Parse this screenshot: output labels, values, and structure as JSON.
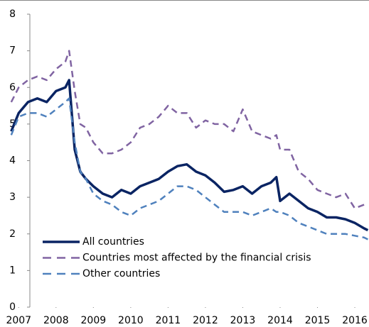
{
  "chart_data": {
    "type": "line",
    "x": [
      2007.3,
      2007.5,
      2007.75,
      2008.0,
      2008.25,
      2008.5,
      2008.75,
      2008.85,
      2009.0,
      2009.15,
      2009.3,
      2009.5,
      2009.75,
      2010.0,
      2010.25,
      2010.5,
      2010.75,
      2011.0,
      2011.25,
      2011.5,
      2011.75,
      2012.0,
      2012.25,
      2012.5,
      2012.75,
      2013.0,
      2013.25,
      2013.5,
      2013.75,
      2014.0,
      2014.25,
      2014.4,
      2014.5,
      2014.75,
      2015.0,
      2015.25,
      2015.5,
      2015.75,
      2016.0,
      2016.25,
      2016.5,
      2016.75,
      2016.85
    ],
    "series": [
      {
        "name": "All countries",
        "color": "#0a2463",
        "dash": false,
        "values": [
          4.8,
          5.3,
          5.6,
          5.7,
          5.6,
          5.9,
          6.0,
          6.2,
          4.3,
          3.7,
          3.5,
          3.3,
          3.1,
          3.0,
          3.2,
          3.1,
          3.3,
          3.4,
          3.5,
          3.7,
          3.85,
          3.9,
          3.7,
          3.6,
          3.4,
          3.15,
          3.2,
          3.3,
          3.1,
          3.3,
          3.4,
          3.55,
          2.9,
          3.1,
          2.9,
          2.7,
          2.6,
          2.45,
          2.45,
          2.4,
          2.3,
          2.15,
          2.1
        ]
      },
      {
        "name": "Countries most affected by the financial crisis",
        "color": "#8064a2",
        "dash": true,
        "values": [
          5.6,
          6.0,
          6.2,
          6.3,
          6.2,
          6.5,
          6.7,
          7.0,
          5.9,
          5.0,
          4.9,
          4.5,
          4.2,
          4.2,
          4.3,
          4.5,
          4.9,
          5.0,
          5.2,
          5.5,
          5.3,
          5.3,
          4.9,
          5.1,
          5.0,
          5.0,
          4.8,
          5.4,
          4.8,
          4.7,
          4.6,
          4.7,
          4.3,
          4.3,
          3.7,
          3.5,
          3.2,
          3.1,
          3.0,
          3.1,
          2.7,
          2.8,
          2.8
        ]
      },
      {
        "name": "Other countries",
        "color": "#4f81bd",
        "dash": true,
        "values": [
          4.7,
          5.2,
          5.3,
          5.3,
          5.2,
          5.4,
          5.6,
          5.7,
          4.5,
          3.7,
          3.5,
          3.1,
          2.9,
          2.8,
          2.6,
          2.5,
          2.7,
          2.8,
          2.9,
          3.1,
          3.3,
          3.3,
          3.2,
          3.0,
          2.8,
          2.6,
          2.6,
          2.6,
          2.5,
          2.6,
          2.7,
          2.6,
          2.6,
          2.5,
          2.3,
          2.2,
          2.1,
          2.0,
          2.0,
          2.0,
          1.95,
          1.9,
          1.85
        ]
      }
    ],
    "xlim": [
      2007,
      2016.88
    ],
    "xticks": [
      {
        "value": 2007.5,
        "label": "2007"
      },
      {
        "value": 2008.5,
        "label": "2008"
      },
      {
        "value": 2009.5,
        "label": "2009"
      },
      {
        "value": 2010.5,
        "label": "2010"
      },
      {
        "value": 2011.5,
        "label": "2011"
      },
      {
        "value": 2012.5,
        "label": "2012"
      },
      {
        "value": 2013.5,
        "label": "2013"
      },
      {
        "value": 2014.5,
        "label": "2014"
      },
      {
        "value": 2015.5,
        "label": "2015"
      },
      {
        "value": 2016.5,
        "label": "2016"
      }
    ],
    "ylim": [
      0,
      8
    ],
    "yticks": [
      0,
      1,
      2,
      3,
      4,
      5,
      6,
      7,
      8
    ],
    "legend": "lower-left"
  }
}
